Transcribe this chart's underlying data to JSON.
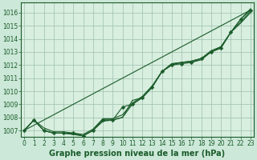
{
  "background_color": "#cce8d8",
  "plot_bg_color": "#d8eedf",
  "grid_color": "#9dbfae",
  "line_color": "#1a5c2a",
  "xlabel": "Graphe pression niveau de la mer (hPa)",
  "xlabel_color": "#1a5c2a",
  "tick_color": "#1a5c2a",
  "ylim": [
    1006.5,
    1016.8
  ],
  "yticks": [
    1007,
    1008,
    1009,
    1010,
    1011,
    1012,
    1013,
    1014,
    1015,
    1016
  ],
  "xlim": [
    -0.3,
    23.3
  ],
  "xticks": [
    0,
    1,
    2,
    3,
    4,
    5,
    6,
    7,
    8,
    9,
    10,
    11,
    12,
    13,
    14,
    15,
    16,
    17,
    18,
    19,
    20,
    21,
    22,
    23
  ],
  "series_main": [
    1007.0,
    1007.8,
    1007.0,
    1006.8,
    1006.8,
    1006.8,
    1006.6,
    1007.0,
    1007.8,
    1007.8,
    1008.8,
    1009.0,
    1009.5,
    1010.3,
    1011.5,
    1012.0,
    1012.1,
    1012.2,
    1012.5,
    1013.0,
    1013.3,
    1014.5,
    1015.5,
    1016.2
  ],
  "series_extra": [
    [
      1007.0,
      1007.8,
      1007.0,
      1006.8,
      1006.8,
      1006.7,
      1006.6,
      1007.0,
      1007.8,
      1007.8,
      1008.0,
      1009.3,
      1009.5,
      1010.3,
      1011.5,
      1012.0,
      1012.2,
      1012.2,
      1012.4,
      1013.0,
      1013.3,
      1014.5,
      1015.5,
      1016.3
    ],
    [
      1007.0,
      1007.8,
      1007.0,
      1006.8,
      1006.8,
      1006.7,
      1006.6,
      1007.0,
      1007.7,
      1007.8,
      1008.0,
      1009.0,
      1009.5,
      1010.3,
      1011.5,
      1012.1,
      1012.2,
      1012.3,
      1012.5,
      1013.0,
      1013.4,
      1014.5,
      1015.2,
      1016.0
    ],
    [
      1007.0,
      1007.8,
      1007.2,
      1006.9,
      1006.9,
      1006.8,
      1006.7,
      1007.1,
      1007.9,
      1007.9,
      1008.2,
      1009.1,
      1009.6,
      1010.4,
      1011.5,
      1012.1,
      1012.2,
      1012.3,
      1012.5,
      1013.1,
      1013.4,
      1014.5,
      1015.3,
      1016.1
    ]
  ],
  "series_trend": [
    1007.0,
    1016.2
  ],
  "series_trend_x": [
    0,
    23
  ],
  "marker": "D",
  "marker_size": 2.5,
  "linewidth": 0.8,
  "font_size_xlabel": 7,
  "font_size_tick": 5.5
}
